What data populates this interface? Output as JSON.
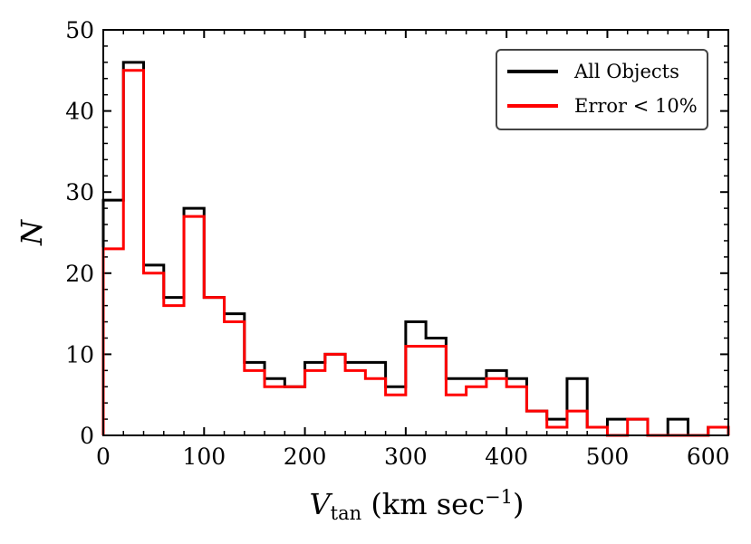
{
  "chart_data": {
    "type": "histogram",
    "xlabel": {
      "main": "V",
      "subscript": "tan",
      "units_prefix": " (km sec",
      "exponent": "−1",
      "units_suffix": ")"
    },
    "ylabel": "N",
    "xlim": [
      0,
      620
    ],
    "ylim": [
      0,
      50
    ],
    "x_ticks": [
      0,
      100,
      200,
      300,
      400,
      500,
      600
    ],
    "y_ticks": [
      0,
      10,
      20,
      30,
      40,
      50
    ],
    "x_tick_labels": [
      "0",
      "100",
      "200",
      "300",
      "400",
      "500",
      "600"
    ],
    "y_tick_labels": [
      "0",
      "10",
      "20",
      "30",
      "40",
      "50"
    ],
    "x_minor_step": 20,
    "y_minor_step": 2,
    "bin_edges": [
      0,
      20,
      40,
      60,
      80,
      100,
      120,
      140,
      160,
      180,
      200,
      220,
      240,
      260,
      280,
      300,
      320,
      340,
      360,
      380,
      400,
      420,
      440,
      460,
      480,
      500,
      520,
      540,
      560,
      580,
      600,
      620
    ],
    "series": [
      {
        "name": "All Objects",
        "color": "#000000",
        "values": [
          29,
          46,
          21,
          17,
          28,
          17,
          15,
          9,
          7,
          6,
          9,
          10,
          9,
          9,
          6,
          14,
          12,
          7,
          7,
          8,
          7,
          3,
          2,
          7,
          1,
          2,
          2,
          0,
          2,
          0,
          1
        ]
      },
      {
        "name": "Error < 10%",
        "color": "#ff0000",
        "values": [
          23,
          45,
          20,
          16,
          27,
          17,
          14,
          8,
          6,
          6,
          8,
          10,
          8,
          7,
          5,
          11,
          11,
          5,
          6,
          7,
          6,
          3,
          1,
          3,
          1,
          0,
          2,
          0,
          0,
          0,
          1
        ]
      }
    ],
    "legend": {
      "position": "top-right",
      "entries": [
        "All Objects",
        "Error < 10%"
      ]
    }
  }
}
